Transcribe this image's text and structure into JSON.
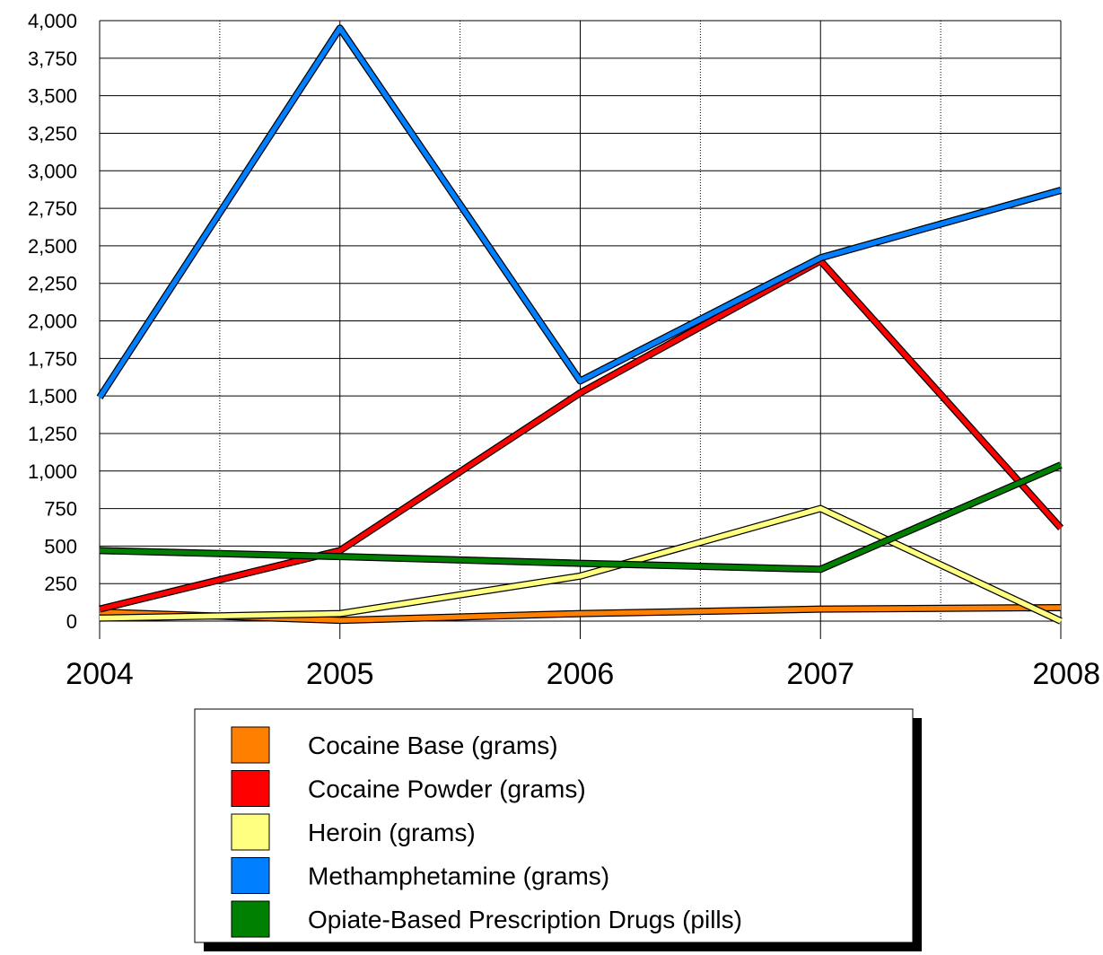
{
  "chart_data": {
    "type": "line",
    "x": [
      "2004",
      "2005",
      "2006",
      "2007",
      "2008"
    ],
    "ylim": [
      0,
      4000
    ],
    "yticks": [
      "0",
      "250",
      "500",
      "750",
      "1,000",
      "1,250",
      "1,500",
      "1,750",
      "2,000",
      "2,250",
      "2,500",
      "2,750",
      "3,000",
      "3,250",
      "3,500",
      "3,750",
      "4,000"
    ],
    "grid": {
      "horizontal": true,
      "vertical_dotted": true
    },
    "legend_placement": "bottom-center",
    "series": [
      {
        "name": "Cocaine Base (grams)",
        "color": "#ff8000",
        "values": [
          60,
          5,
          50,
          80,
          90
        ]
      },
      {
        "name": "Cocaine Powder (grams)",
        "color": "#ff0000",
        "values": [
          80,
          470,
          1520,
          2400,
          620
        ]
      },
      {
        "name": "Heroin (grams)",
        "color": "#ffff80",
        "values": [
          20,
          50,
          300,
          750,
          0
        ]
      },
      {
        "name": "Methamphetamine (grams)",
        "color": "#0080ff",
        "values": [
          1490,
          3950,
          1600,
          2420,
          2870
        ]
      },
      {
        "name": "Opiate-Based Prescription Drugs (pills)",
        "color": "#008000",
        "values": [
          470,
          430,
          385,
          345,
          1040
        ]
      }
    ]
  }
}
